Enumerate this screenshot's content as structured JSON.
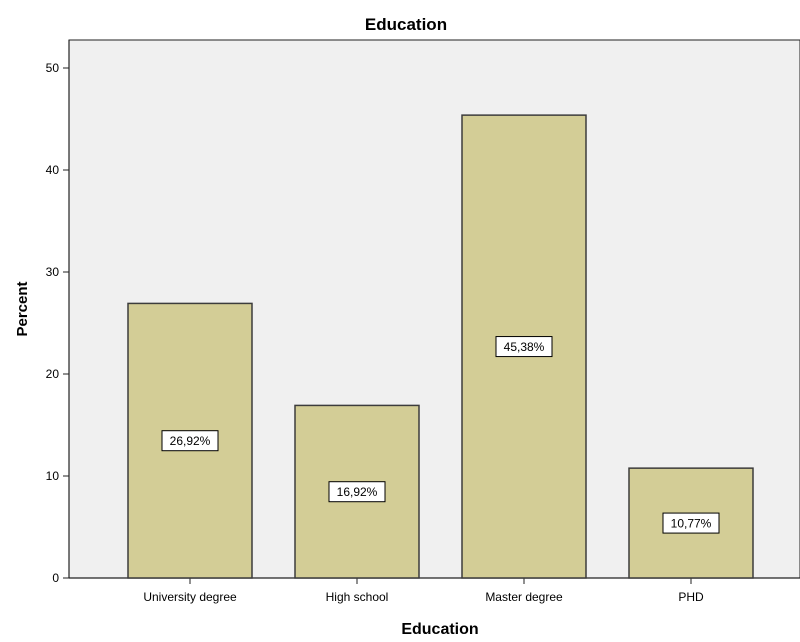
{
  "chart_data": {
    "type": "bar",
    "title": "Education",
    "xlabel": "Education",
    "ylabel": "Percent",
    "categories": [
      "University degree",
      "High school",
      "Master degree",
      "PHD"
    ],
    "values": [
      26.92,
      16.92,
      45.38,
      10.77
    ],
    "data_labels": [
      "26,92%",
      "16,92%",
      "45,38%",
      "10,77%"
    ],
    "yticks": [
      0,
      10,
      20,
      30,
      40,
      50
    ],
    "ylim": [
      0,
      50.5
    ],
    "grid": false,
    "legend": "none",
    "colors": {
      "bar_fill": "#d3cd96",
      "bar_stroke": "#3c3c3c",
      "plot_bg": "#f0f0f0",
      "axis": "#222222",
      "label_box_bg": "#ffffff"
    }
  }
}
